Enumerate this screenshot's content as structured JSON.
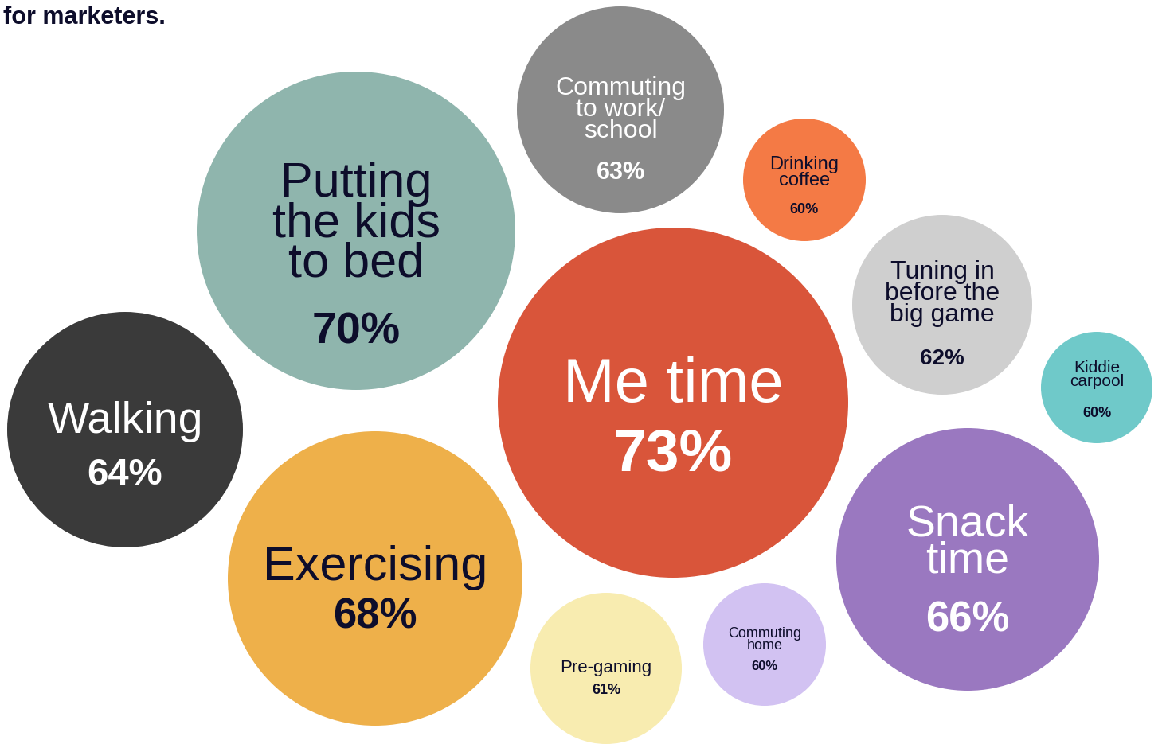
{
  "chart_data": {
    "type": "bubble",
    "title": "for marketers.",
    "categories": [
      "Me time",
      "Putting the kids to bed",
      "Exercising",
      "Snack time",
      "Walking",
      "Commuting to work/school",
      "Tuning in before the big game",
      "Pre-gaming",
      "Drinking coffee",
      "Kiddie carpool",
      "Commuting home"
    ],
    "values": [
      73,
      70,
      68,
      66,
      64,
      63,
      62,
      61,
      60,
      60,
      60
    ],
    "value_labels": [
      "73%",
      "70%",
      "68%",
      "66%",
      "64%",
      "63%",
      "62%",
      "61%",
      "60%",
      "60%",
      "60%"
    ],
    "colors": [
      "#d9553a",
      "#8fb5ad",
      "#eeb04a",
      "#9a78c0",
      "#3a3a3a",
      "#8a8a8a",
      "#cfcfcf",
      "#f8ecb0",
      "#f47a45",
      "#6fc9c9",
      "#d2c2f2"
    ],
    "data_labels": true
  }
}
